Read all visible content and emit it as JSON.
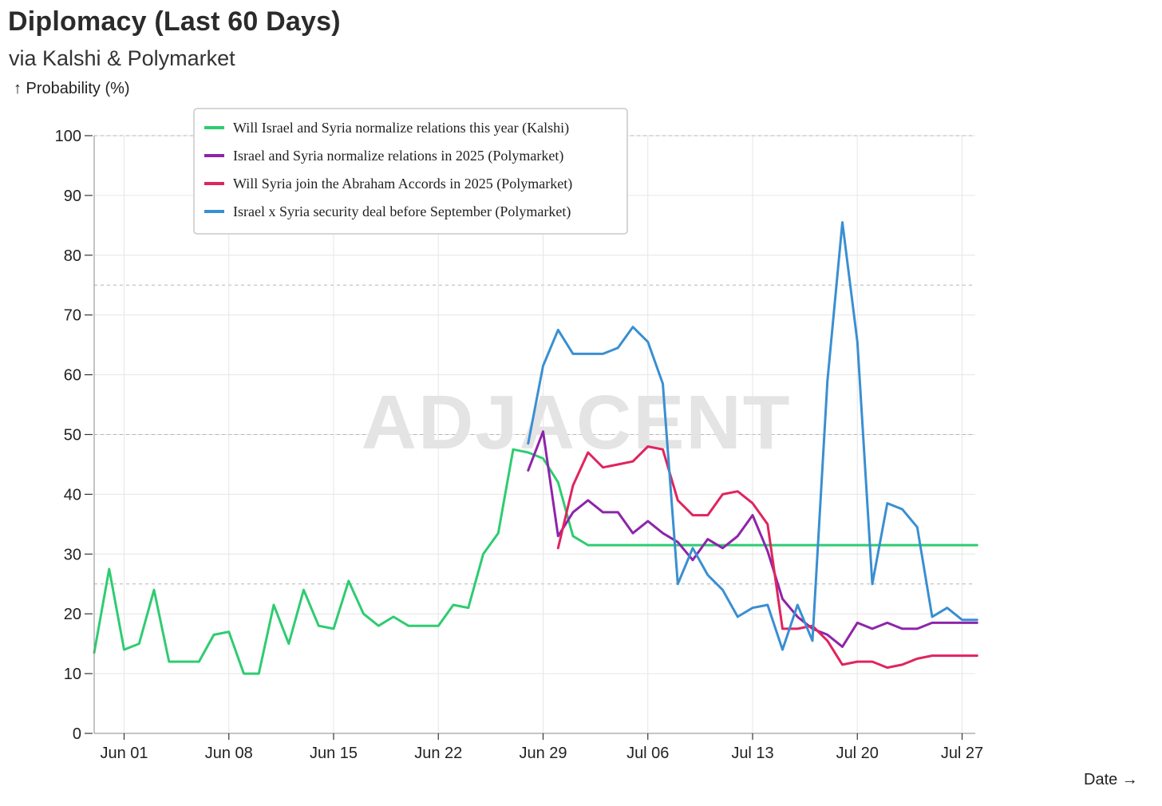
{
  "chart_data": {
    "type": "line",
    "title": "Diplomacy (Last 60 Days)",
    "subtitle": "via Kalshi & Polymarket",
    "ylabel": "↑ Probability (%)",
    "xlabel": "Date →",
    "watermark": "ADJACENT",
    "ylim": [
      0,
      100
    ],
    "yticks": [
      0,
      10,
      20,
      30,
      40,
      50,
      60,
      70,
      80,
      90,
      100
    ],
    "xlim": [
      "2025-05-30",
      "2025-07-27"
    ],
    "xticks": [
      {
        "date": "2025-06-01",
        "label": "Jun 01"
      },
      {
        "date": "2025-06-08",
        "label": "Jun 08"
      },
      {
        "date": "2025-06-15",
        "label": "Jun 15"
      },
      {
        "date": "2025-06-22",
        "label": "Jun 22"
      },
      {
        "date": "2025-06-29",
        "label": "Jun 29"
      },
      {
        "date": "2025-07-06",
        "label": "Jul 06"
      },
      {
        "date": "2025-07-13",
        "label": "Jul 13"
      },
      {
        "date": "2025-07-20",
        "label": "Jul 20"
      },
      {
        "date": "2025-07-27",
        "label": "Jul 27"
      }
    ],
    "reference_lines": [
      25,
      50,
      75,
      100
    ],
    "grid": true,
    "legend_position": "top-left",
    "series": [
      {
        "name": "Will Israel and Syria normalize relations this year (Kalshi)",
        "color": "#2ecc71",
        "points": [
          [
            "2025-05-30",
            13.5
          ],
          [
            "2025-05-31",
            27.5
          ],
          [
            "2025-06-01",
            14
          ],
          [
            "2025-06-02",
            15
          ],
          [
            "2025-06-03",
            24
          ],
          [
            "2025-06-04",
            12
          ],
          [
            "2025-06-05",
            12
          ],
          [
            "2025-06-06",
            12
          ],
          [
            "2025-06-07",
            16.5
          ],
          [
            "2025-06-08",
            17
          ],
          [
            "2025-06-09",
            10
          ],
          [
            "2025-06-10",
            10
          ],
          [
            "2025-06-11",
            21.5
          ],
          [
            "2025-06-12",
            15
          ],
          [
            "2025-06-13",
            24
          ],
          [
            "2025-06-14",
            18
          ],
          [
            "2025-06-15",
            17.5
          ],
          [
            "2025-06-16",
            25.5
          ],
          [
            "2025-06-17",
            20
          ],
          [
            "2025-06-18",
            18
          ],
          [
            "2025-06-19",
            19.5
          ],
          [
            "2025-06-20",
            18
          ],
          [
            "2025-06-21",
            18
          ],
          [
            "2025-06-22",
            18
          ],
          [
            "2025-06-23",
            21.5
          ],
          [
            "2025-06-24",
            21
          ],
          [
            "2025-06-25",
            30
          ],
          [
            "2025-06-26",
            33.5
          ],
          [
            "2025-06-27",
            47.5
          ],
          [
            "2025-06-28",
            47
          ],
          [
            "2025-06-29",
            46
          ],
          [
            "2025-06-30",
            42
          ],
          [
            "2025-07-01",
            33
          ],
          [
            "2025-07-02",
            31.5
          ],
          [
            "2025-07-03",
            31.5
          ],
          [
            "2025-07-04",
            31.5
          ],
          [
            "2025-07-05",
            31.5
          ],
          [
            "2025-07-06",
            31.5
          ],
          [
            "2025-07-07",
            31.5
          ],
          [
            "2025-07-08",
            31.5
          ],
          [
            "2025-07-09",
            31.5
          ],
          [
            "2025-07-10",
            31.5
          ],
          [
            "2025-07-11",
            31.5
          ],
          [
            "2025-07-12",
            31.5
          ],
          [
            "2025-07-13",
            31.5
          ],
          [
            "2025-07-14",
            31.5
          ],
          [
            "2025-07-15",
            31.5
          ],
          [
            "2025-07-16",
            31.5
          ],
          [
            "2025-07-17",
            31.5
          ],
          [
            "2025-07-18",
            31.5
          ],
          [
            "2025-07-19",
            31.5
          ],
          [
            "2025-07-20",
            31.5
          ],
          [
            "2025-07-21",
            31.5
          ],
          [
            "2025-07-22",
            31.5
          ],
          [
            "2025-07-23",
            31.5
          ],
          [
            "2025-07-24",
            31.5
          ],
          [
            "2025-07-25",
            31.5
          ],
          [
            "2025-07-26",
            31.5
          ],
          [
            "2025-07-27",
            31.5
          ],
          [
            "2025-07-28",
            31.5
          ]
        ]
      },
      {
        "name": "Israel and Syria normalize relations in 2025 (Polymarket)",
        "color": "#8e24aa",
        "points": [
          [
            "2025-06-28",
            44
          ],
          [
            "2025-06-29",
            50.5
          ],
          [
            "2025-06-30",
            33
          ],
          [
            "2025-07-01",
            37
          ],
          [
            "2025-07-02",
            39
          ],
          [
            "2025-07-03",
            37
          ],
          [
            "2025-07-04",
            37
          ],
          [
            "2025-07-05",
            33.5
          ],
          [
            "2025-07-06",
            35.5
          ],
          [
            "2025-07-07",
            33.5
          ],
          [
            "2025-07-08",
            32
          ],
          [
            "2025-07-09",
            29
          ],
          [
            "2025-07-10",
            32.5
          ],
          [
            "2025-07-11",
            31
          ],
          [
            "2025-07-12",
            33
          ],
          [
            "2025-07-13",
            36.5
          ],
          [
            "2025-07-14",
            30.5
          ],
          [
            "2025-07-15",
            22.5
          ],
          [
            "2025-07-16",
            19.5
          ],
          [
            "2025-07-17",
            17.5
          ],
          [
            "2025-07-18",
            16.5
          ],
          [
            "2025-07-19",
            14.5
          ],
          [
            "2025-07-20",
            18.5
          ],
          [
            "2025-07-21",
            17.5
          ],
          [
            "2025-07-22",
            18.5
          ],
          [
            "2025-07-23",
            17.5
          ],
          [
            "2025-07-24",
            17.5
          ],
          [
            "2025-07-25",
            18.5
          ],
          [
            "2025-07-26",
            18.5
          ],
          [
            "2025-07-27",
            18.5
          ],
          [
            "2025-07-28",
            18.5
          ]
        ]
      },
      {
        "name": "Will Syria join the Abraham Accords in 2025 (Polymarket)",
        "color": "#e0245e",
        "points": [
          [
            "2025-06-30",
            31
          ],
          [
            "2025-07-01",
            41.5
          ],
          [
            "2025-07-02",
            47
          ],
          [
            "2025-07-03",
            44.5
          ],
          [
            "2025-07-04",
            45
          ],
          [
            "2025-07-05",
            45.5
          ],
          [
            "2025-07-06",
            48
          ],
          [
            "2025-07-07",
            47.5
          ],
          [
            "2025-07-08",
            39
          ],
          [
            "2025-07-09",
            36.5
          ],
          [
            "2025-07-10",
            36.5
          ],
          [
            "2025-07-11",
            40
          ],
          [
            "2025-07-12",
            40.5
          ],
          [
            "2025-07-13",
            38.5
          ],
          [
            "2025-07-14",
            35
          ],
          [
            "2025-07-15",
            17.5
          ],
          [
            "2025-07-16",
            17.5
          ],
          [
            "2025-07-17",
            18
          ],
          [
            "2025-07-18",
            15.5
          ],
          [
            "2025-07-19",
            11.5
          ],
          [
            "2025-07-20",
            12
          ],
          [
            "2025-07-21",
            12
          ],
          [
            "2025-07-22",
            11
          ],
          [
            "2025-07-23",
            11.5
          ],
          [
            "2025-07-24",
            12.5
          ],
          [
            "2025-07-25",
            13
          ],
          [
            "2025-07-26",
            13
          ],
          [
            "2025-07-27",
            13
          ],
          [
            "2025-07-28",
            13
          ]
        ]
      },
      {
        "name": "Israel x Syria security deal before September (Polymarket)",
        "color": "#3a8fd1",
        "points": [
          [
            "2025-06-28",
            48.5
          ],
          [
            "2025-06-29",
            61.5
          ],
          [
            "2025-06-30",
            67.5
          ],
          [
            "2025-07-01",
            63.5
          ],
          [
            "2025-07-02",
            63.5
          ],
          [
            "2025-07-03",
            63.5
          ],
          [
            "2025-07-04",
            64.5
          ],
          [
            "2025-07-05",
            68
          ],
          [
            "2025-07-06",
            65.5
          ],
          [
            "2025-07-07",
            58.5
          ],
          [
            "2025-07-08",
            25
          ],
          [
            "2025-07-09",
            31
          ],
          [
            "2025-07-10",
            26.5
          ],
          [
            "2025-07-11",
            24
          ],
          [
            "2025-07-12",
            19.5
          ],
          [
            "2025-07-13",
            21
          ],
          [
            "2025-07-14",
            21.5
          ],
          [
            "2025-07-15",
            14
          ],
          [
            "2025-07-16",
            21.5
          ],
          [
            "2025-07-17",
            15.5
          ],
          [
            "2025-07-18",
            59
          ],
          [
            "2025-07-19",
            85.5
          ],
          [
            "2025-07-20",
            65.5
          ],
          [
            "2025-07-21",
            25
          ],
          [
            "2025-07-22",
            38.5
          ],
          [
            "2025-07-23",
            37.5
          ],
          [
            "2025-07-24",
            34.5
          ],
          [
            "2025-07-25",
            19.5
          ],
          [
            "2025-07-26",
            21
          ],
          [
            "2025-07-27",
            19
          ],
          [
            "2025-07-28",
            19
          ]
        ]
      }
    ]
  }
}
